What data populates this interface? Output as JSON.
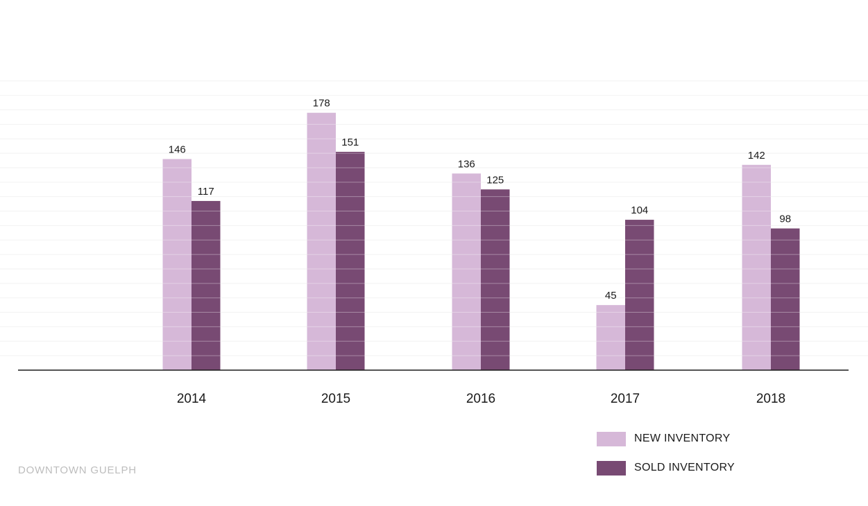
{
  "chart_data": {
    "type": "bar",
    "categories": [
      "2014",
      "2015",
      "2016",
      "2017",
      "2018"
    ],
    "series": [
      {
        "name": "NEW INVENTORY",
        "values": [
          146,
          178,
          136,
          45,
          142
        ],
        "color": "#d6b8d8"
      },
      {
        "name": "SOLD INVENTORY",
        "values": [
          117,
          151,
          125,
          104,
          98
        ],
        "color": "#784a73"
      }
    ],
    "ylim": [
      0,
      200
    ],
    "grid": true,
    "legend_position": "bottom-right",
    "axis_color": "#1a1a1a",
    "grid_color": "#f2f2f2"
  },
  "footer": {
    "label": "DOWNTOWN GUELPH"
  }
}
